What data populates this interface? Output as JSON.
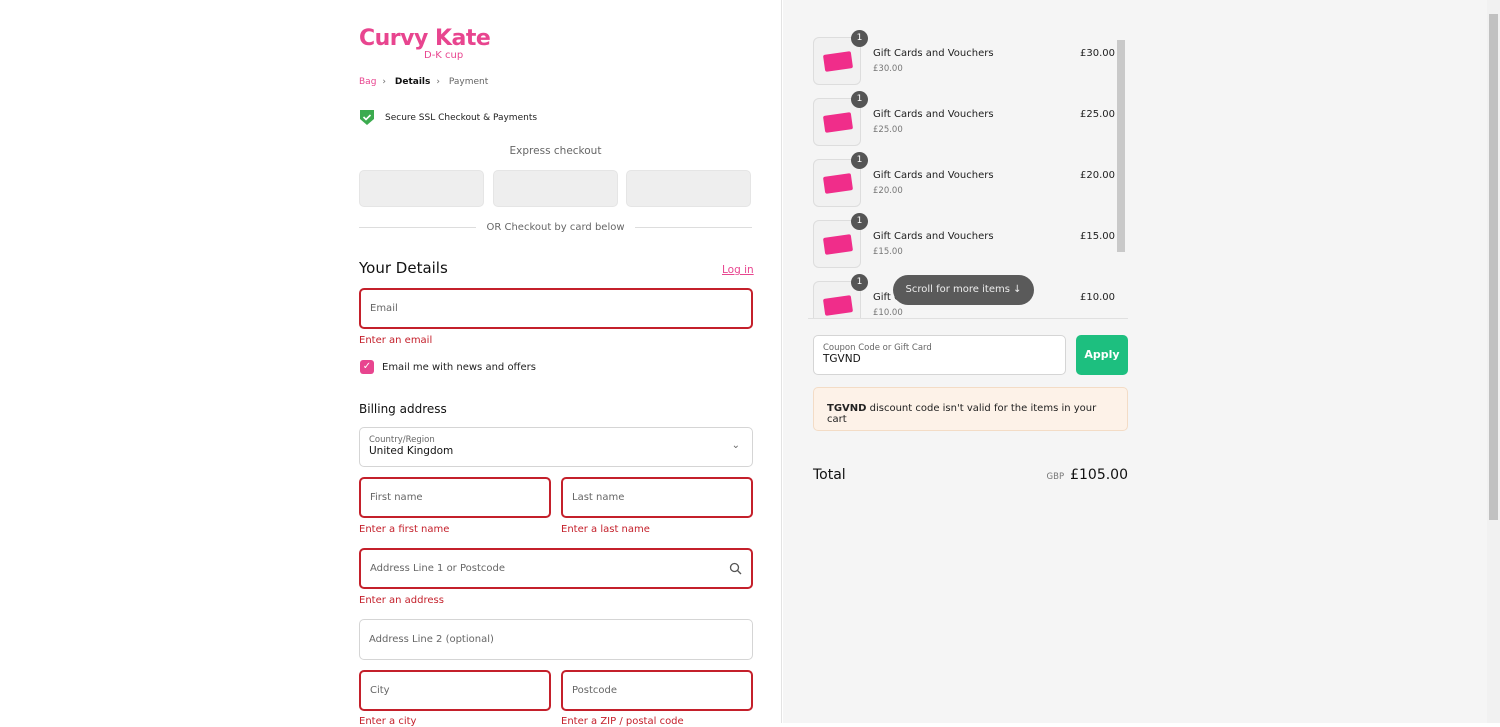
{
  "brand": {
    "name": "Curvy Kate",
    "tagline": "D-K cup"
  },
  "breadcrumb": [
    "Bag",
    "Details",
    "Payment"
  ],
  "ssl": "Secure SSL Checkout & Payments",
  "express": "Express checkout",
  "or": "OR Checkout by card below",
  "details": {
    "title": "Your Details",
    "login": "Log in",
    "email_ph": "Email",
    "email_err": "Enter an email",
    "news": "Email me with news and offers",
    "news_checked": true
  },
  "billing": {
    "title": "Billing address",
    "country_label": "Country/Region",
    "country": "United Kingdom",
    "first_ph": "First name",
    "first_err": "Enter a first name",
    "last_ph": "Last name",
    "last_err": "Enter a last name",
    "addr1_ph": "Address Line 1 or Postcode",
    "addr1_err": "Enter an address",
    "addr2_ph": "Address Line 2 (optional)",
    "city_ph": "City",
    "city_err": "Enter a city",
    "post_ph": "Postcode",
    "post_err": "Enter a ZIP / postal code"
  },
  "cart": {
    "items": [
      {
        "qty": "1",
        "name": "Gift Cards and Vouchers",
        "sub": "£30.00",
        "price": "£30.00"
      },
      {
        "qty": "1",
        "name": "Gift Cards and Vouchers",
        "sub": "£25.00",
        "price": "£25.00"
      },
      {
        "qty": "1",
        "name": "Gift Cards and Vouchers",
        "sub": "£20.00",
        "price": "£20.00"
      },
      {
        "qty": "1",
        "name": "Gift Cards and Vouchers",
        "sub": "£15.00",
        "price": "£15.00"
      },
      {
        "qty": "1",
        "name": "Gift Cards and Vouchers",
        "sub": "£10.00",
        "price": "£10.00"
      }
    ],
    "scroll_hint": "Scroll for more items ↓",
    "coupon_label": "Coupon Code or Gift Card",
    "coupon_value": "TGVND",
    "apply": "Apply",
    "msg_code": "TGVND",
    "msg_text": " discount code isn't valid for the items in your cart",
    "total_label": "Total",
    "currency": "GBP",
    "total": "£105.00"
  },
  "colors": {
    "brand": "#e8458f",
    "error": "#c4202b",
    "apply": "#1dbf7f"
  }
}
